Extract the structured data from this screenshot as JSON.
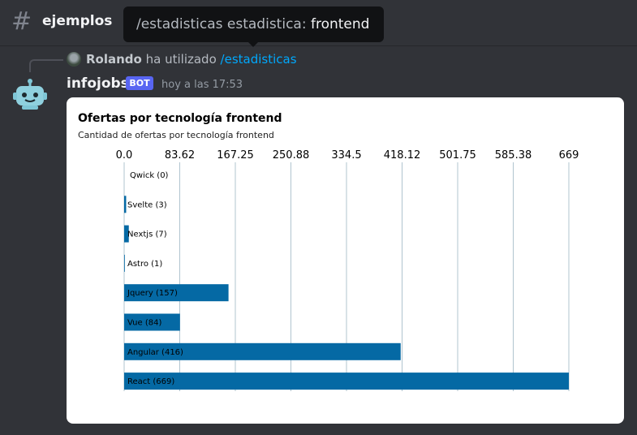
{
  "header": {
    "channel_icon": "hash-icon",
    "channel_name": "ejemplos"
  },
  "tooltip": {
    "command": "/estadisticas estadistica:",
    "value": "frontend"
  },
  "reply": {
    "user": "Rolando",
    "verb": "ha utilizado",
    "command": "/estadisticas"
  },
  "message": {
    "author": "infojobs",
    "badge": "BOT",
    "timestamp": "hoy a las 17:53",
    "avatar_icon": "robot-icon"
  },
  "colors": {
    "bar": "#0569a4",
    "grid": "#b0c4cf",
    "badge": "#5865f2",
    "link": "#00a8fc"
  },
  "chart_data": {
    "type": "bar",
    "orientation": "horizontal",
    "title": "Ofertas por tecnología frontend",
    "subtitle": "Cantidad de ofertas por tecnología frontend",
    "categories": [
      "Qwick (0)",
      "Svelte (3)",
      "Nextjs (7)",
      "Astro (1)",
      "Jquery (157)",
      "Vue (84)",
      "Angular (416)",
      "React (669)"
    ],
    "values": [
      0,
      3,
      7,
      1,
      157,
      84,
      416,
      669
    ],
    "x_ticks": [
      "0.0",
      "83.62",
      "167.25",
      "250.88",
      "334.5",
      "418.12",
      "501.75",
      "585.38",
      "669"
    ],
    "xlim": [
      0,
      669
    ],
    "grid": true,
    "legend": "none"
  }
}
